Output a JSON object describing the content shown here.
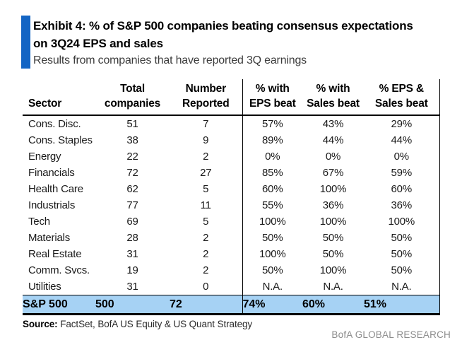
{
  "header": {
    "exhibit_title_line1": "Exhibit 4: % of S&P 500 companies beating consensus expectations",
    "exhibit_title_line2": "on 3Q24 EPS and sales",
    "subtitle": "Results from companies that have reported 3Q earnings"
  },
  "chart_data": {
    "type": "table",
    "title": "Exhibit 4: % of S&P 500 companies beating consensus expectations on 3Q24 EPS and sales",
    "subtitle": "Results from companies that have reported 3Q earnings",
    "columns": [
      {
        "line1": "",
        "line2": "Sector"
      },
      {
        "line1": "Total",
        "line2": "companies"
      },
      {
        "line1": "Number",
        "line2": "Reported"
      },
      {
        "line1": "% with",
        "line2": "EPS beat"
      },
      {
        "line1": "% with",
        "line2": "Sales beat"
      },
      {
        "line1": "% EPS &",
        "line2": "Sales beat"
      }
    ],
    "rows": [
      [
        "Cons. Disc.",
        "51",
        "7",
        "57%",
        "43%",
        "29%"
      ],
      [
        "Cons. Staples",
        "38",
        "9",
        "89%",
        "44%",
        "44%"
      ],
      [
        "Energy",
        "22",
        "2",
        "0%",
        "0%",
        "0%"
      ],
      [
        "Financials",
        "72",
        "27",
        "85%",
        "67%",
        "59%"
      ],
      [
        "Health Care",
        "62",
        "5",
        "60%",
        "100%",
        "60%"
      ],
      [
        "Industrials",
        "77",
        "11",
        "55%",
        "36%",
        "36%"
      ],
      [
        "Tech",
        "69",
        "5",
        "100%",
        "100%",
        "100%"
      ],
      [
        "Materials",
        "28",
        "2",
        "50%",
        "50%",
        "50%"
      ],
      [
        "Real Estate",
        "31",
        "2",
        "100%",
        "50%",
        "50%"
      ],
      [
        "Comm. Svcs.",
        "19",
        "2",
        "50%",
        "100%",
        "50%"
      ],
      [
        "Utilities",
        "31",
        "0",
        "N.A.",
        "N.A.",
        "N.A."
      ]
    ],
    "total_row": [
      "S&P 500",
      "500",
      "72",
      "74%",
      "60%",
      "51%"
    ]
  },
  "footer": {
    "source_label": "Source:",
    "source_text": " FactSet, BofA US Equity & US Quant Strategy",
    "brand": "BofA GLOBAL RESEARCH"
  },
  "colors": {
    "accent_blue": "#1365C4",
    "highlight_blue": "#A6D2F4",
    "brand_gray": "#8C8C8C"
  }
}
